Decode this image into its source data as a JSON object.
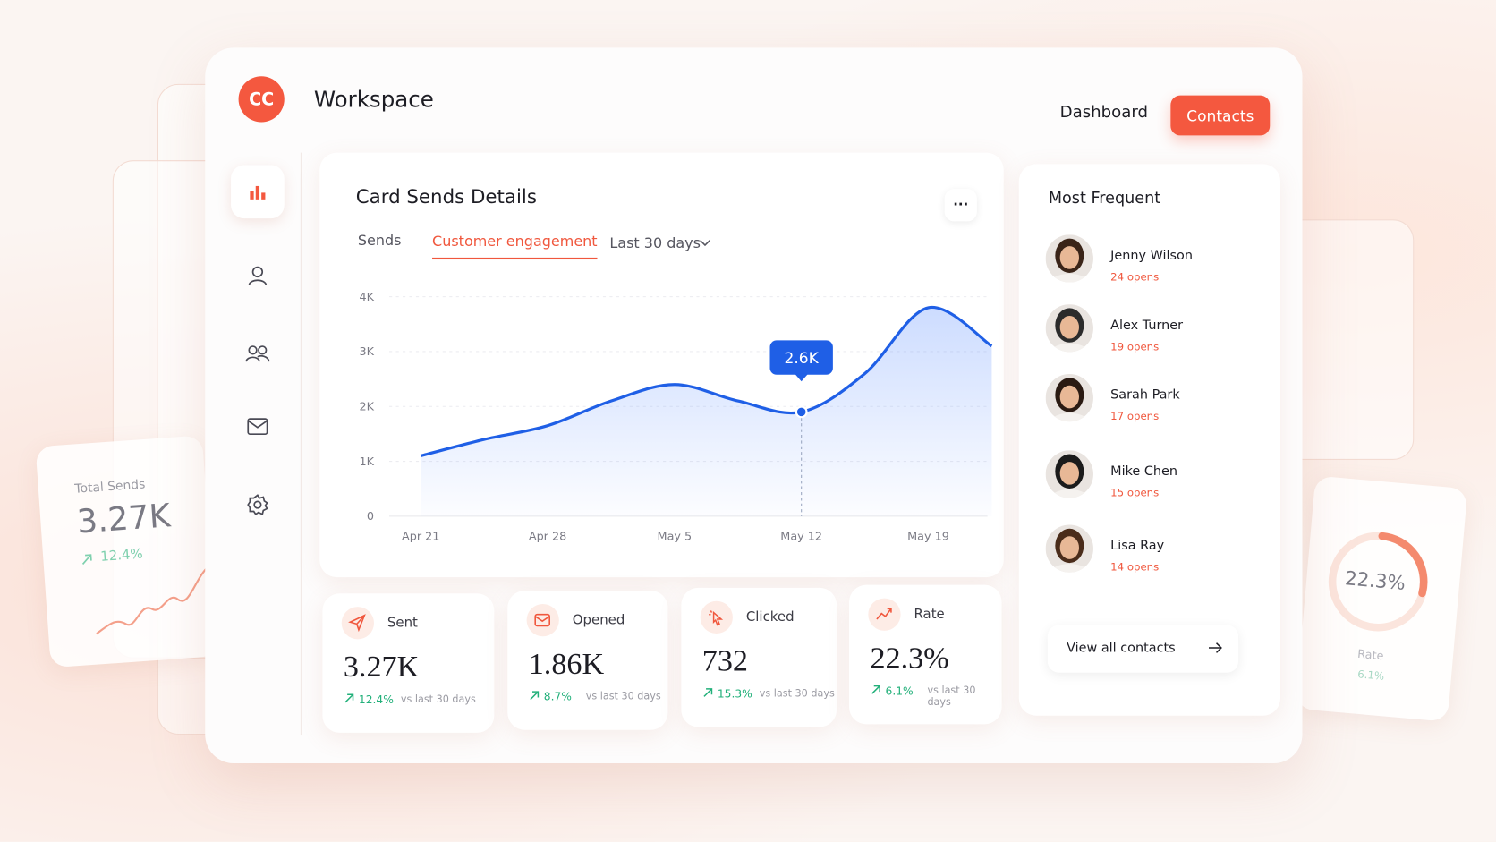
{
  "header": {
    "logo": "CC",
    "title": "Workspace",
    "nav": [
      "Dashboard",
      "Contacts"
    ]
  },
  "chart_card": {
    "title": "Card Sends Details",
    "tabs": [
      "Sends",
      "Customer engagement"
    ],
    "range": "Last 30 days",
    "menu": "···"
  },
  "chart_data": {
    "type": "area",
    "color": "#1f5fe6",
    "categories": [
      "Apr 21",
      null,
      "Apr 28",
      null,
      "May 5",
      null,
      "May 12",
      null,
      "May 19",
      null
    ],
    "values": [
      1100,
      1400,
      1650,
      2100,
      2400,
      2100,
      1900,
      2600,
      3800,
      3100
    ],
    "ylim": [
      0,
      4000
    ],
    "yticks": [
      0,
      {
        "value": 1000,
        "label": "1K"
      },
      {
        "value": 2000,
        "label": "2K"
      },
      {
        "value": 3000,
        "label": "3K"
      },
      {
        "value": 4000,
        "label": "4K"
      }
    ],
    "grid": true,
    "annotation": "2.6K"
  },
  "stats": [
    {
      "label": "Sent",
      "value": "3.27K",
      "change": "12.4%",
      "note": "vs last 30 days"
    },
    {
      "label": "Opened",
      "value": "1.86K",
      "change": "8.7%",
      "note": "vs last 30 days"
    },
    {
      "label": "Clicked",
      "value": "732",
      "change": "15.3%",
      "note": "vs last 30 days"
    },
    {
      "label": "Rate",
      "value": "22.3%",
      "change": "6.1%",
      "note": "vs last 30 days"
    }
  ],
  "contacts": {
    "title": "Most Frequent",
    "items": [
      {
        "name": "Jenny Wilson",
        "opens": "24 opens"
      },
      {
        "name": "Alex Turner",
        "opens": "19 opens"
      },
      {
        "name": "Sarah Park",
        "opens": "17 opens"
      },
      {
        "name": "Mike Chen",
        "opens": "15 opens"
      },
      {
        "name": "Lisa Ray",
        "opens": "14 opens"
      }
    ],
    "button": "View all contacts"
  },
  "side_cards": {
    "left": {
      "label": "Total Sends",
      "value": "3.27K",
      "change": "12.4%"
    },
    "right": {
      "label": "Rate",
      "value": "22.3%",
      "change": "6.1%"
    }
  }
}
